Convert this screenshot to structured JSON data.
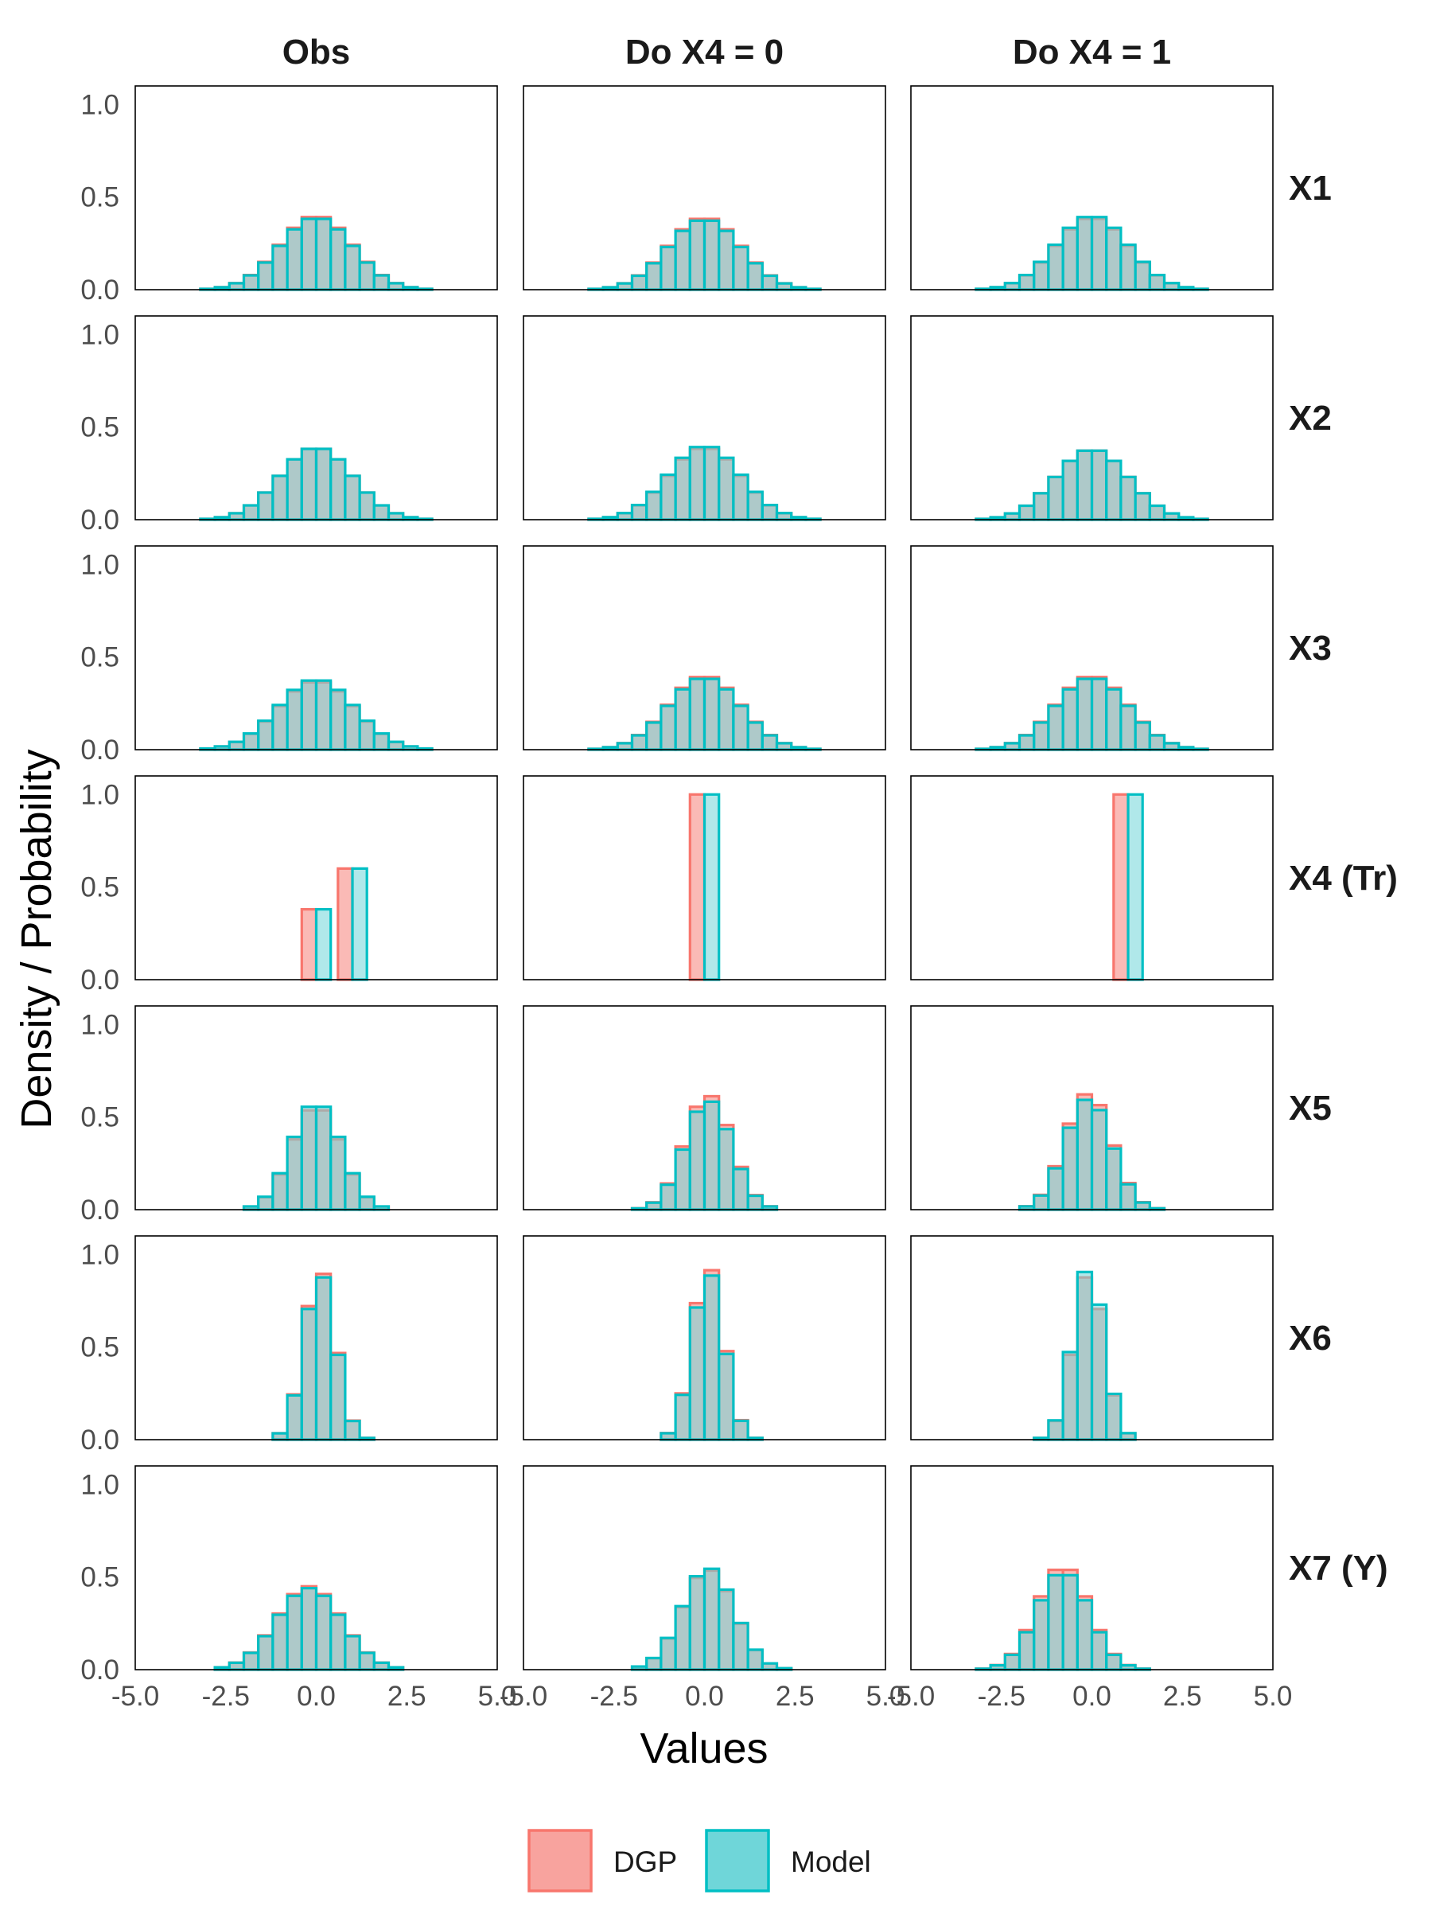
{
  "chart_data": {
    "type": "bar",
    "subtype": "faceted-histogram",
    "xlabel": "Values",
    "ylabel": "Density / Probability",
    "xlim": [
      -5,
      5
    ],
    "ylim": [
      0,
      1.1
    ],
    "x_ticks": [
      "-5.0",
      "-2.5",
      "0.0",
      "2.5",
      "5.0"
    ],
    "x_tick_values": [
      -5,
      -2.5,
      0,
      2.5,
      5
    ],
    "y_ticks": [
      "0.0",
      "0.5",
      "1.0"
    ],
    "y_tick_values": [
      0,
      0.5,
      1.0
    ],
    "columns": [
      "Obs",
      "Do X4 = 0",
      "Do X4 = 1"
    ],
    "rows": [
      "X1",
      "X2",
      "X3",
      "X4 (Tr)",
      "X5",
      "X6",
      "X7 (Y)"
    ],
    "bin_width": 0.4,
    "legend": {
      "position": "bottom",
      "entries": [
        {
          "label": "DGP",
          "fill": "#f8a39e",
          "stroke": "#f8766d"
        },
        {
          "label": "Model",
          "fill": "#6fd6d9",
          "stroke": "#00bfc4"
        }
      ]
    },
    "colors": {
      "dgp_fill": "#f8a39e",
      "dgp_stroke": "#f8766d",
      "model_fill": "#6fd6d9",
      "model_stroke": "#00bfc4"
    },
    "panels": [
      {
        "row": "X1",
        "col": "Obs",
        "kind": "normal",
        "mean": 0.0,
        "sd": 1.0,
        "dgp_peak": 0.4,
        "model_peak": 0.39
      },
      {
        "row": "X1",
        "col": "Do X4 = 0",
        "kind": "normal",
        "mean": 0.0,
        "sd": 1.0,
        "dgp_peak": 0.39,
        "model_peak": 0.38
      },
      {
        "row": "X1",
        "col": "Do X4 = 1",
        "kind": "normal",
        "mean": 0.0,
        "sd": 1.0,
        "dgp_peak": 0.39,
        "model_peak": 0.4
      },
      {
        "row": "X2",
        "col": "Obs",
        "kind": "normal",
        "mean": 0.0,
        "sd": 1.0,
        "dgp_peak": 0.39,
        "model_peak": 0.39
      },
      {
        "row": "X2",
        "col": "Do X4 = 0",
        "kind": "normal",
        "mean": 0.0,
        "sd": 1.0,
        "dgp_peak": 0.39,
        "model_peak": 0.4
      },
      {
        "row": "X2",
        "col": "Do X4 = 1",
        "kind": "normal",
        "mean": 0.0,
        "sd": 1.0,
        "dgp_peak": 0.38,
        "model_peak": 0.38
      },
      {
        "row": "X3",
        "col": "Obs",
        "kind": "normal",
        "mean": 0.0,
        "sd": 1.05,
        "dgp_peak": 0.37,
        "model_peak": 0.38
      },
      {
        "row": "X3",
        "col": "Do X4 = 0",
        "kind": "normal",
        "mean": 0.0,
        "sd": 1.0,
        "dgp_peak": 0.4,
        "model_peak": 0.39
      },
      {
        "row": "X3",
        "col": "Do X4 = 1",
        "kind": "normal",
        "mean": 0.0,
        "sd": 1.0,
        "dgp_peak": 0.4,
        "model_peak": 0.39
      },
      {
        "row": "X4 (Tr)",
        "col": "Obs",
        "kind": "discrete",
        "bars": [
          {
            "series": "DGP",
            "x": 0,
            "value": 0.38
          },
          {
            "series": "Model",
            "x": 0,
            "value": 0.38
          },
          {
            "series": "DGP",
            "x": 1,
            "value": 0.6
          },
          {
            "series": "Model",
            "x": 1,
            "value": 0.6
          }
        ]
      },
      {
        "row": "X4 (Tr)",
        "col": "Do X4 = 0",
        "kind": "discrete",
        "bars": [
          {
            "series": "DGP",
            "x": 0,
            "value": 1.0
          },
          {
            "series": "Model",
            "x": 0,
            "value": 1.0
          }
        ]
      },
      {
        "row": "X4 (Tr)",
        "col": "Do X4 = 1",
        "kind": "discrete",
        "bars": [
          {
            "series": "DGP",
            "x": 1,
            "value": 1.0
          },
          {
            "series": "Model",
            "x": 1,
            "value": 1.0
          }
        ]
      },
      {
        "row": "X5",
        "col": "Obs",
        "kind": "normal",
        "mean": 0.0,
        "sd": 0.68,
        "dgp_peak": 0.56,
        "model_peak": 0.58
      },
      {
        "row": "X5",
        "col": "Do X4 = 0",
        "kind": "normal",
        "mean": 0.1,
        "sd": 0.64,
        "dgp_peak": 0.62,
        "model_peak": 0.59
      },
      {
        "row": "X5",
        "col": "Do X4 = 1",
        "kind": "normal",
        "mean": -0.1,
        "sd": 0.64,
        "dgp_peak": 0.63,
        "model_peak": 0.6
      },
      {
        "row": "X6",
        "col": "Obs",
        "kind": "normal",
        "mean": 0.1,
        "sd": 0.43,
        "dgp_peak": 0.92,
        "model_peak": 0.9
      },
      {
        "row": "X6",
        "col": "Do X4 = 0",
        "kind": "normal",
        "mean": 0.1,
        "sd": 0.43,
        "dgp_peak": 0.94,
        "model_peak": 0.91
      },
      {
        "row": "X6",
        "col": "Do X4 = 1",
        "kind": "normal",
        "mean": -0.1,
        "sd": 0.43,
        "dgp_peak": 0.9,
        "model_peak": 0.93
      },
      {
        "row": "X7 (Y)",
        "col": "Obs",
        "kind": "normal",
        "mean": -0.2,
        "sd": 0.9,
        "dgp_peak": 0.45,
        "model_peak": 0.44
      },
      {
        "row": "X7 (Y)",
        "col": "Do X4 = 0",
        "kind": "normal",
        "mean": 0.1,
        "sd": 0.72,
        "dgp_peak": 0.54,
        "model_peak": 0.55
      },
      {
        "row": "X7 (Y)",
        "col": "Do X4 = 1",
        "kind": "normal",
        "mean": -0.8,
        "sd": 0.72,
        "dgp_peak": 0.56,
        "model_peak": 0.53
      }
    ]
  }
}
